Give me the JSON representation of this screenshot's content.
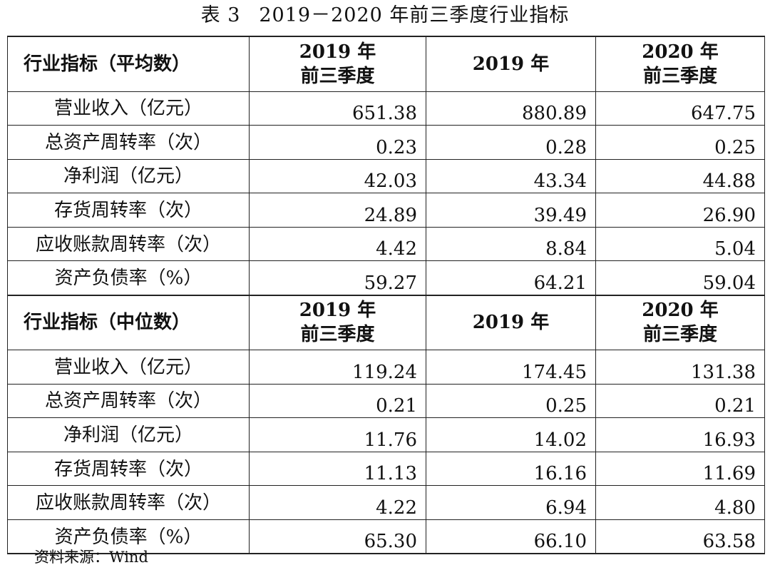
{
  "title": {
    "label": "表 3",
    "text": "2019－2020 年前三季度行业指标"
  },
  "columns": {
    "col1": {
      "line1": "2019 年",
      "line2": "前三季度"
    },
    "col2": {
      "line1": "2019 年"
    },
    "col3": {
      "line1": "2020 年",
      "line2": "前三季度"
    }
  },
  "sections": [
    {
      "header": "行业指标（平均数）",
      "rows": [
        {
          "label": "营业收入（亿元）",
          "values": [
            "651.38",
            "880.89",
            "647.75"
          ]
        },
        {
          "label": "总资产周转率（次）",
          "values": [
            "0.23",
            "0.28",
            "0.25"
          ]
        },
        {
          "label": "净利润（亿元）",
          "values": [
            "42.03",
            "43.34",
            "44.88"
          ]
        },
        {
          "label": "存货周转率（次）",
          "values": [
            "24.89",
            "39.49",
            "26.90"
          ]
        },
        {
          "label": "应收账款周转率（次）",
          "values": [
            "4.42",
            "8.84",
            "5.04"
          ]
        },
        {
          "label": "资产负债率（%）",
          "values": [
            "59.27",
            "64.21",
            "59.04"
          ]
        }
      ]
    },
    {
      "header": "行业指标（中位数）",
      "rows": [
        {
          "label": "营业收入（亿元）",
          "values": [
            "119.24",
            "174.45",
            "131.38"
          ]
        },
        {
          "label": "总资产周转率（次）",
          "values": [
            "0.21",
            "0.25",
            "0.21"
          ]
        },
        {
          "label": "净利润（亿元）",
          "values": [
            "11.76",
            "14.02",
            "16.93"
          ]
        },
        {
          "label": "存货周转率（次）",
          "values": [
            "11.13",
            "16.16",
            "11.69"
          ]
        },
        {
          "label": "应收账款周转率（次）",
          "values": [
            "4.22",
            "6.94",
            "4.80"
          ]
        },
        {
          "label": "资产负债率（%）",
          "values": [
            "65.30",
            "66.10",
            "63.58"
          ]
        }
      ]
    }
  ],
  "source": "资料来源：Wind"
}
